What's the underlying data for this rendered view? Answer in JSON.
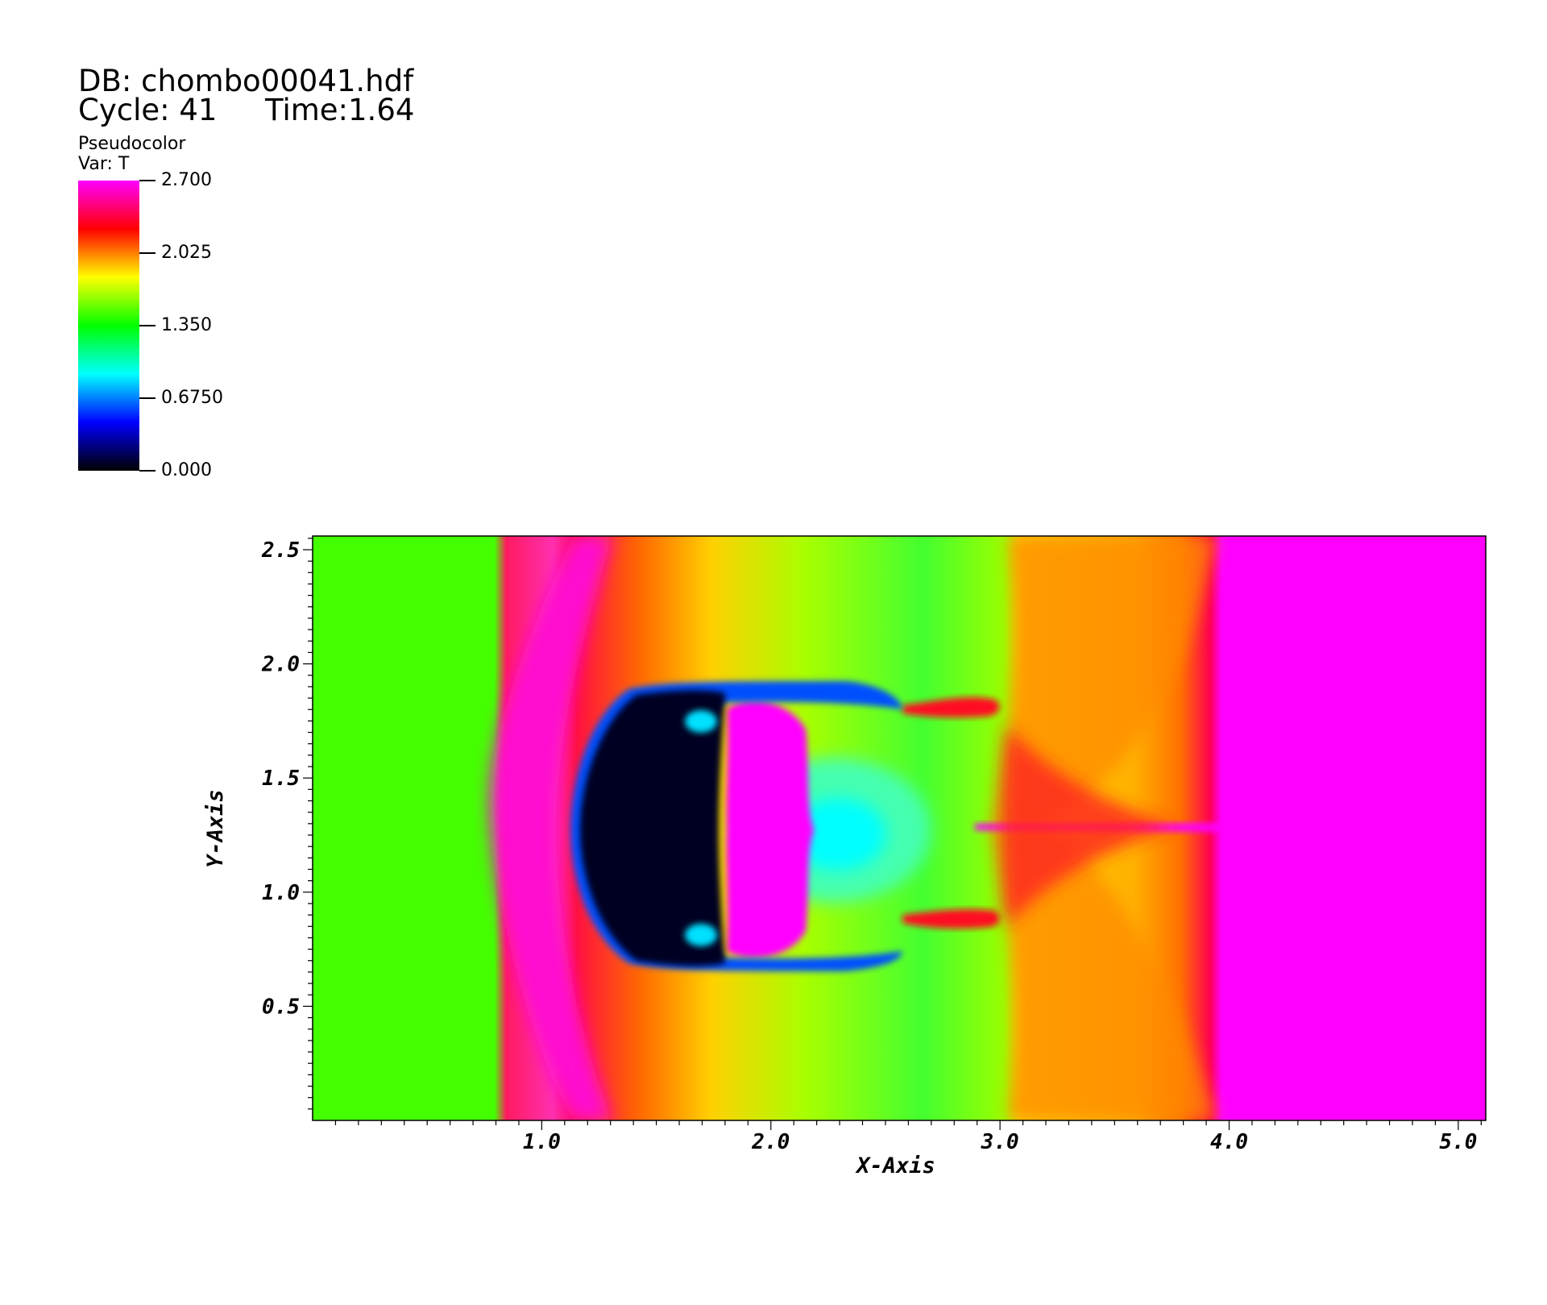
{
  "header": {
    "db": "DB: chombo00041.hdf",
    "cycle": "Cycle: 41",
    "time": "Time:1.64"
  },
  "legend": {
    "title": "Pseudocolor",
    "var": "Var: T",
    "ticks": [
      {
        "label": "2.700",
        "value": 2.7
      },
      {
        "label": "2.025",
        "value": 2.025
      },
      {
        "label": "1.350",
        "value": 1.35
      },
      {
        "label": "0.6750",
        "value": 0.675
      },
      {
        "label": "0.000",
        "value": 0.0
      }
    ],
    "colormap": [
      "#000000",
      "#0000ff",
      "#00ffff",
      "#00ff00",
      "#ffff00",
      "#ff0000",
      "#ff00ff"
    ]
  },
  "chart_data": {
    "type": "heatmap",
    "variable": "T",
    "xlabel": "X-Axis",
    "ylabel": "Y-Axis",
    "xlim": [
      0.0,
      5.12
    ],
    "ylim": [
      0.0,
      2.56
    ],
    "x_ticks": [
      "1.0",
      "2.0",
      "3.0",
      "4.0",
      "5.0"
    ],
    "y_ticks": [
      "0.5",
      "1.0",
      "1.5",
      "2.0",
      "2.5"
    ],
    "x_tick_values": [
      1.0,
      2.0,
      3.0,
      4.0,
      5.0
    ],
    "y_tick_values": [
      0.5,
      1.0,
      1.5,
      2.0,
      2.5
    ],
    "value_range": [
      0.0,
      2.7
    ]
  }
}
